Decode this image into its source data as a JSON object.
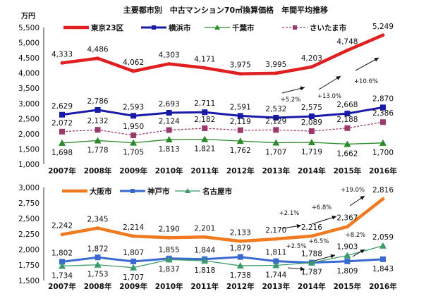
{
  "chart_data": [
    {
      "type": "line",
      "title": "主要都市別　中古マンション70㎡換算価格　年間平均推移",
      "ylabel": "万円",
      "ylim": [
        1000,
        5500
      ],
      "yticks": [
        1000,
        1500,
        2000,
        2500,
        3000,
        3500,
        4000,
        4500,
        5000,
        5500
      ],
      "ytick_labels": [
        "1,000",
        "1,500",
        "2,000",
        "2,500",
        "3,000",
        "3,500",
        "4,000",
        "4,500",
        "5,000",
        "5,500"
      ],
      "categories": [
        "2007年",
        "2008年",
        "2009年",
        "2010年",
        "2011年",
        "2012年",
        "2013年",
        "2014年",
        "2015年",
        "2016年"
      ],
      "legend": "top",
      "grid": false,
      "series": [
        {
          "name": "東京23区",
          "color": "#e02020",
          "marker": "diamond",
          "style": "solid-thick",
          "label_pos": "above",
          "values": [
            4333,
            4486,
            4062,
            4303,
            4171,
            3975,
            3995,
            4203,
            4748,
            5249
          ]
        },
        {
          "name": "横浜市",
          "color": "#1a1aa8",
          "marker": "square",
          "style": "solid",
          "label_pos": "above",
          "values": [
            2629,
            2786,
            2593,
            2693,
            2711,
            2591,
            2532,
            2575,
            2668,
            2870
          ]
        },
        {
          "name": "千葉市",
          "color": "#2a8a2a",
          "marker": "triangle",
          "style": "solid-thin",
          "label_pos": "below",
          "values": [
            1698,
            1778,
            1705,
            1813,
            1821,
            1762,
            1707,
            1719,
            1662,
            1700
          ]
        },
        {
          "name": "さいたま市",
          "color": "#9a3a6a",
          "marker": "square",
          "style": "dashed",
          "label_pos": "above",
          "values": [
            2072,
            2132,
            1950,
            2124,
            2182,
            2119,
            2129,
            2089,
            2188,
            2386
          ]
        }
      ],
      "annotations": [
        "+5.2%",
        "+13.0%",
        "+10.6%"
      ]
    },
    {
      "type": "line",
      "ylim": [
        1500,
        3000
      ],
      "yticks": [
        1500,
        1750,
        2000,
        2250,
        2500,
        2750,
        3000
      ],
      "ytick_labels": [
        "1,500",
        "1,750",
        "2,000",
        "2,250",
        "2,500",
        "2,750",
        "3,000"
      ],
      "categories": [
        "2007年",
        "2008年",
        "2009年",
        "2010年",
        "2011年",
        "2012年",
        "2013年",
        "2014年",
        "2015年",
        "2016年"
      ],
      "legend": "top-left",
      "grid": false,
      "series": [
        {
          "name": "大阪市",
          "color": "#f07a20",
          "marker": "diamond",
          "style": "solid-thick",
          "label_pos": "above",
          "values": [
            2242,
            2345,
            2214,
            2190,
            2201,
            2133,
            2170,
            2216,
            2367,
            2816
          ]
        },
        {
          "name": "神戸市",
          "color": "#3a6ad0",
          "marker": "square",
          "style": "solid",
          "label_pos": "above",
          "values": [
            1802,
            1872,
            1807,
            1855,
            1844,
            1879,
            1811,
            1788,
            1809,
            1843
          ]
        },
        {
          "name": "名古屋市",
          "color": "#3a9a6a",
          "marker": "triangle",
          "style": "solid-thin",
          "label_pos": "below",
          "values": [
            1734,
            1753,
            1707,
            1837,
            1818,
            1738,
            1744,
            1787,
            1903,
            2059
          ]
        }
      ],
      "annotations": [
        "+2.1%",
        "+6.8%",
        "+19.0%",
        "+2.5%",
        "+6.5%",
        "+8.2%"
      ]
    }
  ]
}
